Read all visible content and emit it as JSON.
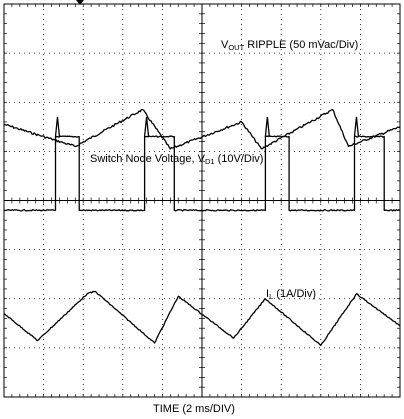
{
  "labels": {
    "vout": {
      "main": "V",
      "sub": "OUT",
      "rest": " RIPPLE  (50 mVac/Div)"
    },
    "switch_node": {
      "main": "Switch Node Voltage, V",
      "sub": "D1",
      "rest": " (10V/Div)"
    },
    "inductor_current": {
      "main": "I",
      "sub": "L",
      "rest": "  (1A/Div)"
    },
    "time_axis": "TIME  (2 ms/DIV)"
  },
  "chart_data": {
    "type": "line",
    "xlabel": "TIME  (2 ms/DIV)",
    "grid": true,
    "divisions": {
      "x": 10,
      "y": 8
    },
    "time_per_div_ms": 2,
    "xlim_div": [
      0,
      10
    ],
    "ylim_div": [
      0,
      8
    ],
    "series": [
      {
        "name": "VOUT RIPPLE  (50 mVac/Div)",
        "color": "#000000",
        "x_div": [
          0,
          1.8,
          3.5,
          4.2,
          6.0,
          6.5,
          8.3,
          8.7,
          10.0
        ],
        "y_div": [
          5.55,
          5.1,
          5.85,
          5.05,
          5.6,
          5.05,
          5.85,
          5.1,
          5.5
        ]
      },
      {
        "name": "Switch Node Voltage, VD1 (10V/Div)",
        "color": "#000000",
        "x_div": [
          0,
          1.3,
          1.3,
          1.9,
          1.9,
          3.55,
          3.55,
          4.3,
          4.3,
          6.6,
          6.6,
          7.2,
          7.2,
          8.85,
          8.85,
          9.6,
          9.6,
          10.0
        ],
        "y_div": [
          3.8,
          3.8,
          5.3,
          5.3,
          3.8,
          3.8,
          5.3,
          5.3,
          3.8,
          3.8,
          5.3,
          5.3,
          3.8,
          3.8,
          5.3,
          5.3,
          3.8,
          3.8
        ],
        "spike_top_div": 5.7
      },
      {
        "name": "IL  (1A/Div)",
        "color": "#000000",
        "x_div": [
          0,
          0.85,
          2.1,
          2.3,
          3.8,
          4.4,
          5.8,
          6.6,
          8.0,
          8.9,
          10.0
        ],
        "y_div": [
          1.7,
          1.15,
          2.1,
          2.15,
          1.1,
          2.05,
          1.2,
          2.0,
          1.05,
          2.1,
          1.45
        ]
      }
    ]
  }
}
